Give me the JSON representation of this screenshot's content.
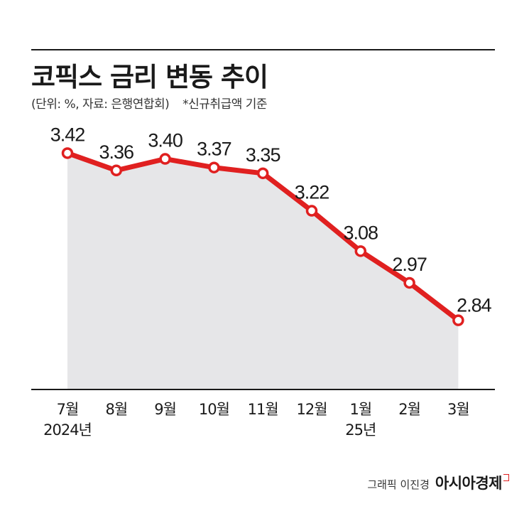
{
  "title": "코픽스 금리 변동 추이",
  "subtitle": "(단위: %, 자료: 은행연합회)",
  "note": "*신규취급액 기준",
  "credit": {
    "author": "그래픽 이진경",
    "brand": "아시아경제"
  },
  "colors": {
    "line": "#e02020",
    "area": "#e6e6e8",
    "marker_fill": "#ffffff"
  },
  "chart_data": {
    "type": "area",
    "title": "코픽스 금리 변동 추이",
    "xlabel": "",
    "ylabel": "",
    "ylim": [
      2.6,
      3.5
    ],
    "grid": false,
    "categories": [
      "7월",
      "8월",
      "9월",
      "10월",
      "11월",
      "12월",
      "1월",
      "2월",
      "3월"
    ],
    "year_labels": [
      "2024년",
      "",
      "",
      "",
      "",
      "",
      "25년",
      "",
      ""
    ],
    "values": [
      3.42,
      3.36,
      3.4,
      3.37,
      3.35,
      3.22,
      3.08,
      2.97,
      2.84
    ],
    "value_labels": [
      "3.42",
      "3.36",
      "3.40",
      "3.37",
      "3.35",
      "3.22",
      "3.08",
      "2.97",
      "2.84"
    ]
  }
}
